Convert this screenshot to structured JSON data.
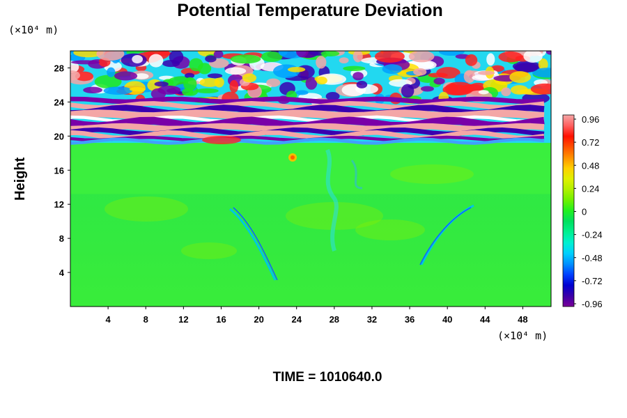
{
  "chart_data": {
    "type": "heatmap",
    "title": "Potential Temperature Deviation",
    "ylabel": "Height",
    "xunit": "(×10⁴ m)",
    "yunit": "(×10⁴ m)",
    "xlim": [
      0,
      51
    ],
    "ylim": [
      0,
      30
    ],
    "xticks": [
      4,
      8,
      12,
      16,
      20,
      24,
      28,
      32,
      36,
      40,
      44,
      48
    ],
    "yticks": [
      4,
      8,
      12,
      16,
      20,
      24,
      28
    ],
    "colorbar": {
      "ticks": [
        0.96,
        0.72,
        0.48,
        0.24,
        0,
        -0.24,
        -0.48,
        -0.72,
        -0.96
      ],
      "range": [
        -0.96,
        0.96
      ],
      "colors": [
        "#7a0099",
        "#3a00a8",
        "#0000d0",
        "#0040ff",
        "#0090ff",
        "#00d0ff",
        "#00f0d0",
        "#00f090",
        "#00e060",
        "#20f020",
        "#70f000",
        "#b0f000",
        "#e0f000",
        "#ffd000",
        "#ff9000",
        "#ff5000",
        "#ff1000",
        "#ff6060",
        "#f4a6a6"
      ]
    },
    "field_description": "Near-zero (green) values in the lower troposphere with two V-shaped blue wave arcs; strong alternating purple/pink/blue banded perturbations above ~19×10⁴ m."
  },
  "footer": {
    "time_label": "TIME = 1010640.0"
  }
}
